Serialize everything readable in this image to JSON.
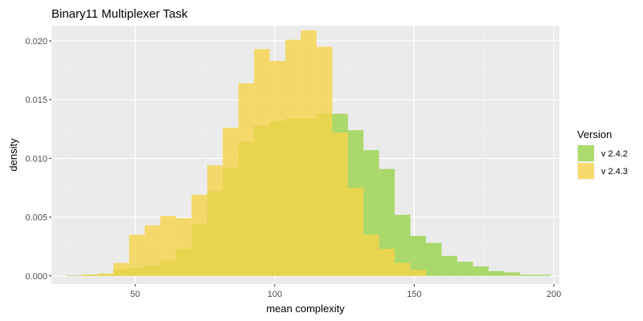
{
  "chart_data": {
    "type": "histogram",
    "title": "Binary11 Multiplexer Task",
    "xlabel": "mean complexity",
    "ylabel": "density",
    "xlim": [
      20,
      202
    ],
    "ylim": [
      -0.0007,
      0.0213
    ],
    "x_ticks": [
      50,
      100,
      150,
      200
    ],
    "x_tick_labels": [
      "50",
      "100",
      "150",
      "200"
    ],
    "y_ticks": [
      0,
      0.005,
      0.01,
      0.015,
      0.02
    ],
    "y_tick_labels": [
      "0.000",
      "0.005",
      "0.010",
      "0.015",
      "0.020"
    ],
    "bin_width": 5.6,
    "bin_starts": [
      25.4,
      31.0,
      36.6,
      42.2,
      47.8,
      53.4,
      59.0,
      64.6,
      70.2,
      75.8,
      81.4,
      87.0,
      92.6,
      98.2,
      103.8,
      109.4,
      115.0,
      120.6,
      126.2,
      131.8,
      137.4,
      143.0,
      148.6,
      154.2,
      159.8,
      165.4,
      171.0,
      176.6,
      182.2,
      187.8,
      193.4
    ],
    "series": [
      {
        "name": "v 2.4.2",
        "color": "#9ad34a",
        "values": [
          5e-05,
          0.0001,
          0.00015,
          0.0006,
          0.0007,
          0.0009,
          0.0013,
          0.0023,
          0.0044,
          0.0072,
          0.0092,
          0.0114,
          0.0128,
          0.0132,
          0.0134,
          0.0134,
          0.0138,
          0.0138,
          0.0124,
          0.0107,
          0.0091,
          0.0052,
          0.0034,
          0.0028,
          0.0017,
          0.0012,
          0.0008,
          0.0004,
          0.0003,
          0.0001,
          0.0001
        ]
      },
      {
        "name": "v 2.4.3",
        "color": "#f6d44a",
        "values": [
          0.0,
          0.0001,
          0.0002,
          0.0011,
          0.0035,
          0.0043,
          0.0051,
          0.0049,
          0.0069,
          0.0094,
          0.0126,
          0.0164,
          0.0193,
          0.0183,
          0.0201,
          0.0209,
          0.0195,
          0.0122,
          0.0075,
          0.0035,
          0.0023,
          0.0011,
          0.0005,
          0.0,
          0.0,
          0.0,
          0.0,
          0.0,
          0.0,
          0.0,
          0.0
        ]
      }
    ],
    "legend": {
      "title": "Version",
      "position": "right"
    },
    "grid": true,
    "colors": {
      "panel": "#ebebeb",
      "grid_major": "#ffffff",
      "grid_minor": "#f4f4f4"
    }
  }
}
